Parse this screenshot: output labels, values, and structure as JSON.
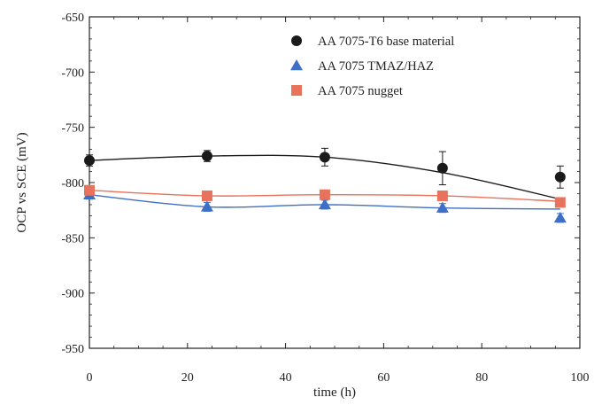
{
  "chart_data": {
    "type": "scatter",
    "xlabel": "time (h)",
    "ylabel": "OCP vs SCE (mV)",
    "xlim": [
      0,
      100
    ],
    "ylim": [
      -950,
      -650
    ],
    "xticks": [
      0,
      20,
      40,
      60,
      80,
      100
    ],
    "yticks": [
      -650,
      -700,
      -750,
      -800,
      -850,
      -900,
      -950
    ],
    "grid": false,
    "legend_position": "top-right",
    "series": [
      {
        "name": "AA 7075-T6 base material",
        "marker": "circle",
        "color": "#1a1a1a",
        "line_color": "#1a1a1a",
        "x": [
          0,
          24,
          48,
          72,
          96
        ],
        "y": [
          -780,
          -776,
          -777,
          -787,
          -795
        ],
        "err": [
          5,
          5,
          8,
          15,
          10
        ],
        "trend": [
          -780,
          -776,
          -777,
          -791,
          -815
        ]
      },
      {
        "name": "AA 7075 TMAZ/HAZ",
        "marker": "triangle",
        "color": "#3d6fc6",
        "line_color": "#3d6fc6",
        "x": [
          0,
          24,
          48,
          72,
          96
        ],
        "y": [
          -811,
          -822,
          -820,
          -823,
          -832
        ],
        "err": [
          4,
          4,
          4,
          4,
          4
        ],
        "trend": [
          -811,
          -822,
          -820,
          -823,
          -824
        ]
      },
      {
        "name": "AA 7075 nugget",
        "marker": "square",
        "color": "#e8725c",
        "line_color": "#e8725c",
        "x": [
          0,
          24,
          48,
          72,
          96
        ],
        "y": [
          -807,
          -812,
          -811,
          -812,
          -818
        ],
        "err": [
          3,
          3,
          3,
          3,
          3
        ],
        "trend": [
          -807,
          -812,
          -811,
          -812,
          -817
        ]
      }
    ]
  }
}
